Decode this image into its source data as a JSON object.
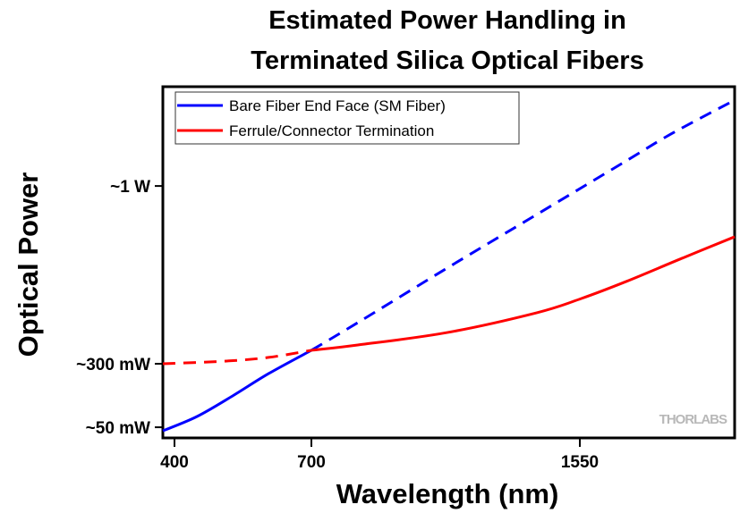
{
  "chart_data": {
    "type": "line",
    "title": [
      "Estimated Power Handling in",
      "Terminated Silica Optical Fibers"
    ],
    "xlabel": "Wavelength (nm)",
    "ylabel": "Optical Power",
    "xlim": [
      375,
      2040
    ],
    "ylim": [
      8,
      1391
    ],
    "x_ticks": [
      {
        "value": 400,
        "label": "400"
      },
      {
        "value": 700,
        "label": "700"
      },
      {
        "value": 1550,
        "label": "1550"
      }
    ],
    "y_ticks": [
      {
        "value": 1000,
        "label": "~1 W"
      },
      {
        "value": 300,
        "label": "~300 mW"
      },
      {
        "value": 50,
        "label": "~50 mW"
      }
    ],
    "grid": false,
    "legend_position": "top-left",
    "watermark": "THORLABS",
    "series": [
      {
        "name": "Bare Fiber End Face (SM Fiber)",
        "color": "#0000ff",
        "solid": {
          "x": [
            375,
            449,
            527,
            606,
            700
          ],
          "y": [
            36,
            92,
            173,
            261,
            353
          ]
        },
        "dashed": {
          "x": [
            700,
            847,
            1130,
            1414,
            1697,
            1839,
            2040
          ],
          "y": [
            353,
            462,
            677,
            888,
            1099,
            1205,
            1338
          ]
        }
      },
      {
        "name": "Ferrule/Connector Termination",
        "color": "#ff0000",
        "dashed": {
          "x": [
            375,
            508,
            606,
            700
          ],
          "y": [
            300,
            310,
            325,
            353
          ]
        },
        "solid": {
          "x": [
            700,
            847,
            1130,
            1414,
            1555,
            1697,
            1867,
            2040
          ],
          "y": [
            353,
            374,
            423,
            501,
            557,
            624,
            712,
            800
          ]
        }
      }
    ]
  }
}
